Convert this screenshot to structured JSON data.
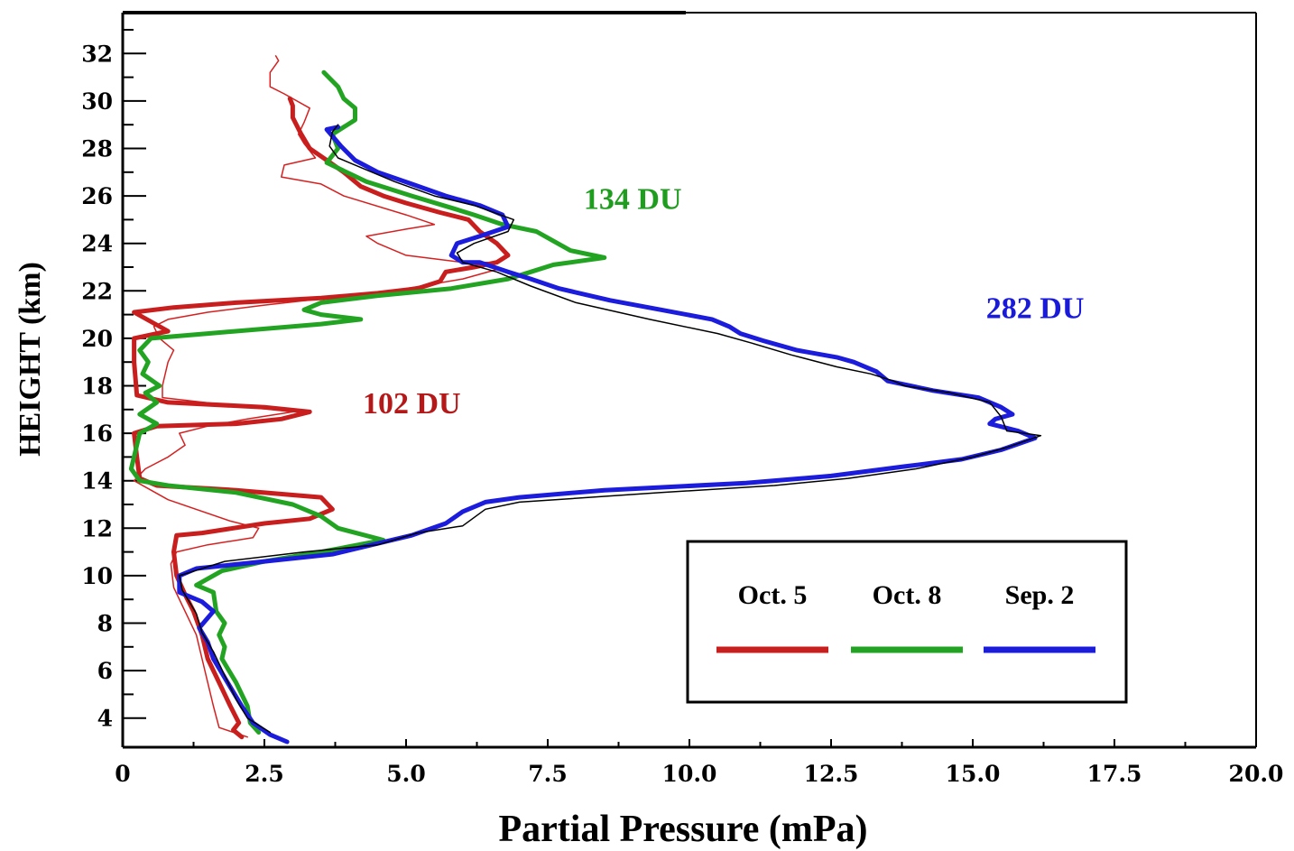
{
  "chart_data": {
    "type": "line",
    "xlabel": "Partial Pressure (mPa)",
    "ylabel": "HEIGHT (km)",
    "xlim": [
      0,
      20
    ],
    "ylim": [
      2.5,
      32.5
    ],
    "x_ticks": [
      "0",
      "2.5",
      "5.0",
      "7.5",
      "10.0",
      "12.5",
      "15.0",
      "17.5",
      "20.0"
    ],
    "y_ticks": [
      "4",
      "6",
      "8",
      "10",
      "12",
      "14",
      "16",
      "18",
      "20",
      "22",
      "24",
      "26",
      "28",
      "30",
      "32"
    ],
    "legend_position": "bottom-right",
    "annotations": [
      {
        "text": "134 DU",
        "x": 9.0,
        "y": 25.9,
        "color": "#1f9d1f"
      },
      {
        "text": "282 DU",
        "x": 16.1,
        "y": 21.3,
        "color": "#1a1adb"
      },
      {
        "text": "102 DU",
        "x": 5.1,
        "y": 17.3,
        "color": "#b41818"
      }
    ],
    "series": [
      {
        "name": "Oct. 5",
        "color": "#c81e1e",
        "style": "thick",
        "points": [
          [
            2.1,
            3.2
          ],
          [
            1.95,
            3.5
          ],
          [
            2.05,
            3.8
          ],
          [
            1.9,
            4.5
          ],
          [
            1.7,
            5.5
          ],
          [
            1.5,
            6.5
          ],
          [
            1.4,
            7.5
          ],
          [
            1.25,
            8.5
          ],
          [
            1.1,
            9.2
          ],
          [
            0.95,
            10
          ],
          [
            0.9,
            11
          ],
          [
            0.95,
            11.7
          ],
          [
            1.4,
            11.8
          ],
          [
            2.5,
            12.2
          ],
          [
            3.3,
            12.4
          ],
          [
            3.7,
            12.8
          ],
          [
            3.5,
            13.3
          ],
          [
            2.0,
            13.6
          ],
          [
            0.6,
            13.8
          ],
          [
            0.3,
            14.1
          ],
          [
            0.25,
            15
          ],
          [
            0.2,
            16
          ],
          [
            0.6,
            16.3
          ],
          [
            2.0,
            16.4
          ],
          [
            2.8,
            16.6
          ],
          [
            3.3,
            16.9
          ],
          [
            2.5,
            17.1
          ],
          [
            0.8,
            17.3
          ],
          [
            0.25,
            17.6
          ],
          [
            0.2,
            19
          ],
          [
            0.2,
            20
          ],
          [
            0.8,
            20.3
          ],
          [
            0.5,
            20.7
          ],
          [
            0.2,
            21.1
          ],
          [
            0.9,
            21.3
          ],
          [
            2.0,
            21.5
          ],
          [
            3.5,
            21.7
          ],
          [
            4.5,
            21.9
          ],
          [
            5.2,
            22.1
          ],
          [
            5.6,
            22.4
          ],
          [
            5.7,
            22.8
          ],
          [
            6.2,
            23
          ],
          [
            6.6,
            23.2
          ],
          [
            6.8,
            23.5
          ],
          [
            6.6,
            24
          ],
          [
            6.3,
            24.5
          ],
          [
            6.1,
            25
          ],
          [
            5.6,
            25.3
          ],
          [
            5.0,
            25.7
          ],
          [
            4.6,
            26
          ],
          [
            4.2,
            26.4
          ],
          [
            3.9,
            27
          ],
          [
            3.6,
            27.5
          ],
          [
            3.3,
            28
          ],
          [
            3.15,
            28.6
          ],
          [
            3.0,
            29.3
          ],
          [
            3.0,
            29.8
          ],
          [
            2.95,
            30.1
          ]
        ]
      },
      {
        "name": "Oct. 5 (thin)",
        "color": "#d62020",
        "style": "thin",
        "points": [
          [
            2.2,
            3.2
          ],
          [
            1.7,
            3.6
          ],
          [
            1.6,
            4.5
          ],
          [
            1.5,
            5.5
          ],
          [
            1.4,
            6.5
          ],
          [
            1.3,
            7.5
          ],
          [
            1.1,
            8.5
          ],
          [
            0.9,
            9.5
          ],
          [
            0.85,
            10.5
          ],
          [
            0.95,
            11
          ],
          [
            1.5,
            11.3
          ],
          [
            2.3,
            11.6
          ],
          [
            2.4,
            12
          ],
          [
            1.9,
            12.3
          ],
          [
            0.8,
            13.2
          ],
          [
            0.2,
            14
          ],
          [
            0.4,
            14.5
          ],
          [
            0.8,
            15
          ],
          [
            1.1,
            15.5
          ],
          [
            1.0,
            16
          ],
          [
            1.5,
            16.3
          ],
          [
            2.2,
            16.6
          ],
          [
            3.0,
            16.9
          ],
          [
            1.8,
            17.2
          ],
          [
            0.7,
            17.5
          ],
          [
            0.7,
            18
          ],
          [
            0.8,
            19
          ],
          [
            0.9,
            19.5
          ],
          [
            0.65,
            20
          ],
          [
            0.55,
            20.5
          ],
          [
            0.8,
            20.8
          ],
          [
            1.5,
            21.1
          ],
          [
            2.5,
            21.4
          ],
          [
            4.0,
            21.8
          ],
          [
            5.0,
            22.1
          ],
          [
            6.0,
            22.5
          ],
          [
            6.6,
            22.9
          ],
          [
            6.5,
            23.2
          ],
          [
            6.0,
            23.2
          ],
          [
            5.0,
            23.5
          ],
          [
            4.5,
            24
          ],
          [
            4.3,
            24.3
          ],
          [
            5.0,
            24.6
          ],
          [
            5.5,
            24.8
          ],
          [
            5.0,
            25.2
          ],
          [
            3.9,
            26
          ],
          [
            3.5,
            26.5
          ],
          [
            2.8,
            26.8
          ],
          [
            2.85,
            27.3
          ],
          [
            3.4,
            27.6
          ],
          [
            3.2,
            28.2
          ],
          [
            3.1,
            28.6
          ],
          [
            3.2,
            29.1
          ],
          [
            3.3,
            29.7
          ],
          [
            2.85,
            30.3
          ],
          [
            2.6,
            30.6
          ],
          [
            2.6,
            31.2
          ],
          [
            2.75,
            31.7
          ],
          [
            2.7,
            31.9
          ]
        ]
      },
      {
        "name": "Oct. 8",
        "color": "#22a422",
        "style": "thick",
        "points": [
          [
            2.4,
            3.4
          ],
          [
            2.25,
            3.8
          ],
          [
            2.2,
            4.5
          ],
          [
            2.0,
            5.5
          ],
          [
            1.75,
            6.5
          ],
          [
            1.8,
            7
          ],
          [
            1.7,
            7.5
          ],
          [
            1.8,
            8
          ],
          [
            1.65,
            8.5
          ],
          [
            1.6,
            9.3
          ],
          [
            1.3,
            9.6
          ],
          [
            1.75,
            10.2
          ],
          [
            2.5,
            10.6
          ],
          [
            3.5,
            11
          ],
          [
            4.6,
            11.5
          ],
          [
            3.8,
            12
          ],
          [
            3.5,
            12.5
          ],
          [
            3.0,
            13
          ],
          [
            2.0,
            13.5
          ],
          [
            0.8,
            13.8
          ],
          [
            0.3,
            14
          ],
          [
            0.15,
            14.5
          ],
          [
            0.3,
            16
          ],
          [
            0.6,
            16.4
          ],
          [
            0.3,
            16.8
          ],
          [
            0.6,
            17.3
          ],
          [
            0.4,
            17.7
          ],
          [
            0.65,
            18
          ],
          [
            0.35,
            18.5
          ],
          [
            0.45,
            19
          ],
          [
            0.3,
            19.5
          ],
          [
            0.5,
            20
          ],
          [
            1.5,
            20.2
          ],
          [
            3.5,
            20.6
          ],
          [
            4.2,
            20.8
          ],
          [
            3.5,
            21
          ],
          [
            3.2,
            21.2
          ],
          [
            3.5,
            21.5
          ],
          [
            4.5,
            21.8
          ],
          [
            5.8,
            22.1
          ],
          [
            6.8,
            22.5
          ],
          [
            7.2,
            22.8
          ],
          [
            7.6,
            23.1
          ],
          [
            8.5,
            23.4
          ],
          [
            7.9,
            23.7
          ],
          [
            7.6,
            24.1
          ],
          [
            7.3,
            24.5
          ],
          [
            6.7,
            24.8
          ],
          [
            6.2,
            25.2
          ],
          [
            5.8,
            25.5
          ],
          [
            5.1,
            26
          ],
          [
            4.3,
            26.6
          ],
          [
            3.6,
            27.4
          ],
          [
            3.8,
            28
          ],
          [
            3.7,
            28.6
          ],
          [
            4.1,
            29.2
          ],
          [
            4.1,
            29.7
          ],
          [
            3.9,
            30.1
          ],
          [
            3.8,
            30.6
          ],
          [
            3.55,
            31.2
          ]
        ]
      },
      {
        "name": "Sep. 2",
        "color": "#1c1cdc",
        "style": "thick",
        "points": [
          [
            2.9,
            3.0
          ],
          [
            2.6,
            3.3
          ],
          [
            2.3,
            3.8
          ],
          [
            2.1,
            4.5
          ],
          [
            1.85,
            5.5
          ],
          [
            1.6,
            6.5
          ],
          [
            1.5,
            7.2
          ],
          [
            1.35,
            7.8
          ],
          [
            1.6,
            8.5
          ],
          [
            1.4,
            8.9
          ],
          [
            1.0,
            9.3
          ],
          [
            1.0,
            10
          ],
          [
            1.3,
            10.3
          ],
          [
            2.5,
            10.6
          ],
          [
            3.7,
            10.9
          ],
          [
            4.4,
            11.3
          ],
          [
            5.1,
            11.7
          ],
          [
            5.7,
            12.2
          ],
          [
            6.0,
            12.7
          ],
          [
            6.4,
            13.1
          ],
          [
            7.0,
            13.3
          ],
          [
            8.5,
            13.6
          ],
          [
            11.0,
            13.9
          ],
          [
            12.5,
            14.2
          ],
          [
            13.8,
            14.6
          ],
          [
            14.8,
            14.9
          ],
          [
            15.5,
            15.3
          ],
          [
            16.1,
            15.8
          ],
          [
            15.8,
            16.1
          ],
          [
            15.3,
            16.4
          ],
          [
            15.4,
            16.6
          ],
          [
            15.7,
            16.8
          ],
          [
            15.5,
            17.1
          ],
          [
            15.1,
            17.5
          ],
          [
            14.3,
            17.8
          ],
          [
            13.5,
            18.2
          ],
          [
            13.3,
            18.6
          ],
          [
            12.9,
            19.0
          ],
          [
            12.6,
            19.2
          ],
          [
            11.9,
            19.5
          ],
          [
            11.3,
            19.9
          ],
          [
            10.9,
            20.2
          ],
          [
            10.7,
            20.5
          ],
          [
            10.4,
            20.8
          ],
          [
            9.5,
            21.2
          ],
          [
            8.6,
            21.6
          ],
          [
            7.7,
            22.1
          ],
          [
            7.2,
            22.5
          ],
          [
            6.8,
            22.8
          ],
          [
            6.3,
            23.2
          ],
          [
            6.0,
            23.2
          ],
          [
            5.8,
            23.5
          ],
          [
            5.9,
            24
          ],
          [
            6.3,
            24.3
          ],
          [
            6.8,
            24.7
          ],
          [
            6.7,
            25.2
          ],
          [
            6.3,
            25.6
          ],
          [
            5.7,
            26
          ],
          [
            5.1,
            26.5
          ],
          [
            4.5,
            27
          ],
          [
            4.1,
            27.5
          ],
          [
            3.85,
            28.1
          ],
          [
            3.6,
            28.8
          ],
          [
            3.8,
            28.9
          ]
        ]
      },
      {
        "name": "Sep. 2 (thin)",
        "color": "#000000",
        "style": "thin",
        "points": [
          [
            2.6,
            3.4
          ],
          [
            2.2,
            4
          ],
          [
            2.0,
            4.8
          ],
          [
            1.8,
            5.8
          ],
          [
            1.6,
            6.8
          ],
          [
            1.4,
            7.6
          ],
          [
            1.3,
            8.4
          ],
          [
            1.05,
            9.4
          ],
          [
            1.0,
            10
          ],
          [
            1.8,
            10.6
          ],
          [
            3.2,
            11
          ],
          [
            4.5,
            11.3
          ],
          [
            5.2,
            11.8
          ],
          [
            6.0,
            12.1
          ],
          [
            6.4,
            12.8
          ],
          [
            7.0,
            13.1
          ],
          [
            9.5,
            13.5
          ],
          [
            11.5,
            13.8
          ],
          [
            12.8,
            14.1
          ],
          [
            14.0,
            14.5
          ],
          [
            15.0,
            15.0
          ],
          [
            15.6,
            15.4
          ],
          [
            16.2,
            15.9
          ],
          [
            15.6,
            16.1
          ],
          [
            15.5,
            16.7
          ],
          [
            15.3,
            17.3
          ],
          [
            14.6,
            17.7
          ],
          [
            13.8,
            18.0
          ],
          [
            13.6,
            18.2
          ],
          [
            13.2,
            18.5
          ],
          [
            12.6,
            18.8
          ],
          [
            11.8,
            19.3
          ],
          [
            11.1,
            19.8
          ],
          [
            10.5,
            20.2
          ],
          [
            9.3,
            20.8
          ],
          [
            8.0,
            21.5
          ],
          [
            7.2,
            22.2
          ],
          [
            6.6,
            22.8
          ],
          [
            6.0,
            23.2
          ],
          [
            5.9,
            23.6
          ],
          [
            6.2,
            24
          ],
          [
            6.8,
            24.5
          ],
          [
            6.9,
            25
          ],
          [
            6.2,
            25.6
          ],
          [
            5.5,
            26
          ],
          [
            4.8,
            26.6
          ],
          [
            4.3,
            27.1
          ],
          [
            3.8,
            27.6
          ],
          [
            3.65,
            28.1
          ],
          [
            3.7,
            28.7
          ],
          [
            3.8,
            29
          ]
        ]
      }
    ],
    "legend": [
      {
        "label": "Oct. 5",
        "color": "#c81e1e"
      },
      {
        "label": "Oct. 8",
        "color": "#22a422"
      },
      {
        "label": "Sep. 2",
        "color": "#1c1cdc"
      }
    ]
  }
}
